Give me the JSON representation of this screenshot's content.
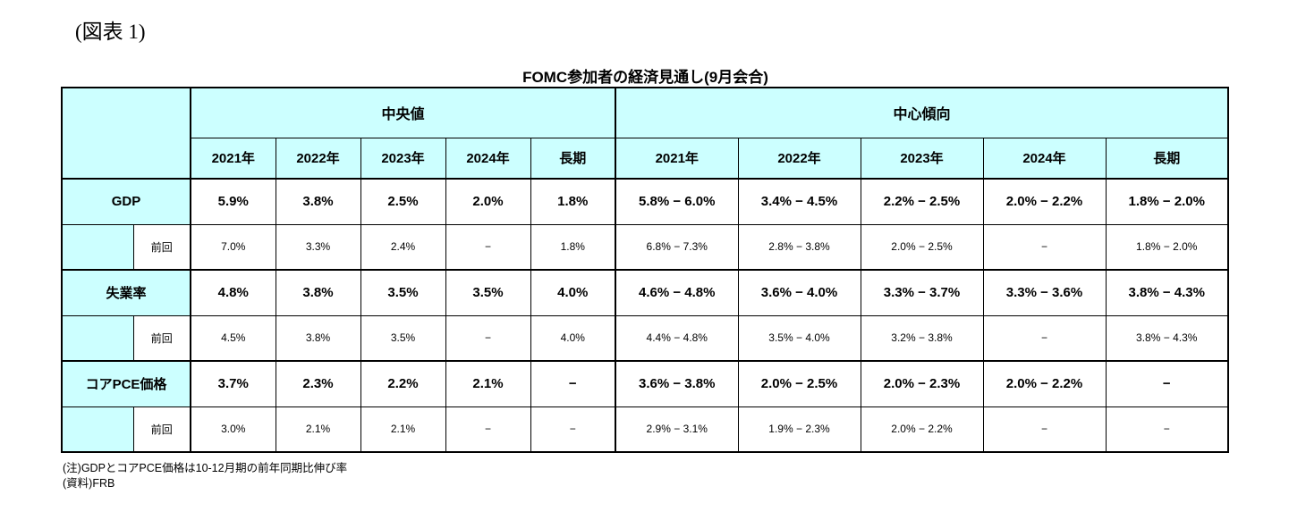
{
  "figure_label": "(図表 1)",
  "title": "FOMC参加者の経済見通し(9月会合)",
  "table": {
    "group_headers": [
      "中央値",
      "中心傾向"
    ],
    "year_headers": [
      "2021年",
      "2022年",
      "2023年",
      "2024年",
      "長期"
    ],
    "rows": [
      {
        "label": "GDP",
        "median": [
          "5.9%",
          "3.8%",
          "2.5%",
          "2.0%",
          "1.8%"
        ],
        "range": [
          "5.8% − 6.0%",
          "3.4% − 4.5%",
          "2.2% − 2.5%",
          "2.0% − 2.2%",
          "1.8% − 2.0%"
        ]
      },
      {
        "label": "前回",
        "median": [
          "7.0%",
          "3.3%",
          "2.4%",
          "−",
          "1.8%"
        ],
        "range": [
          "6.8% − 7.3%",
          "2.8% − 3.8%",
          "2.0% − 2.5%",
          "−",
          "1.8% − 2.0%"
        ]
      },
      {
        "label": "失業率",
        "median": [
          "4.8%",
          "3.8%",
          "3.5%",
          "3.5%",
          "4.0%"
        ],
        "range": [
          "4.6% − 4.8%",
          "3.6% − 4.0%",
          "3.3% − 3.7%",
          "3.3% − 3.6%",
          "3.8% − 4.3%"
        ]
      },
      {
        "label": "前回",
        "median": [
          "4.5%",
          "3.8%",
          "3.5%",
          "−",
          "4.0%"
        ],
        "range": [
          "4.4% − 4.8%",
          "3.5% − 4.0%",
          "3.2% − 3.8%",
          "−",
          "3.8% − 4.3%"
        ]
      },
      {
        "label": "コアPCE価格",
        "median": [
          "3.7%",
          "2.3%",
          "2.2%",
          "2.1%",
          "−"
        ],
        "range": [
          "3.6% − 3.8%",
          "2.0% − 2.5%",
          "2.0% − 2.3%",
          "2.0% − 2.2%",
          "−"
        ]
      },
      {
        "label": "前回",
        "median": [
          "3.0%",
          "2.1%",
          "2.1%",
          "−",
          "−"
        ],
        "range": [
          "2.9% − 3.1%",
          "1.9% − 2.3%",
          "2.0% − 2.2%",
          "−",
          "−"
        ]
      }
    ]
  },
  "notes": [
    "(注)GDPとコアPCE価格は10-12月期の前年同期比伸び率",
    "(資料)FRB"
  ]
}
